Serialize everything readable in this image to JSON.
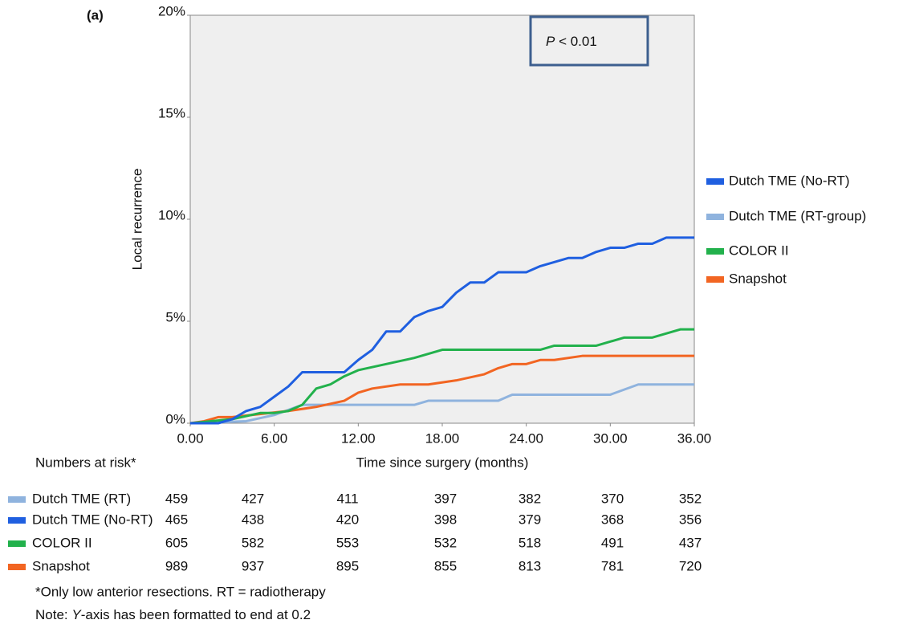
{
  "chart_data": {
    "type": "line",
    "panel_label": "(a)",
    "ylabel": "Local recurrence",
    "xlabel": "Time since surgery (months)",
    "annotation": {
      "symbol": "P",
      "text": "< 0.01"
    },
    "xlim": [
      0,
      36
    ],
    "xticks": [
      {
        "value": 0,
        "label": "0.00"
      },
      {
        "value": 6,
        "label": "6.00"
      },
      {
        "value": 12,
        "label": "12.00"
      },
      {
        "value": 18,
        "label": "18.00"
      },
      {
        "value": 24,
        "label": "24.00"
      },
      {
        "value": 30,
        "label": "30.00"
      },
      {
        "value": 36,
        "label": "36.00"
      }
    ],
    "ylim": [
      0,
      20
    ],
    "yticks": [
      {
        "value": 0,
        "label": "0%"
      },
      {
        "value": 5,
        "label": "5%"
      },
      {
        "value": 10,
        "label": "10%"
      },
      {
        "value": 15,
        "label": "15%"
      },
      {
        "value": 20,
        "label": "20%"
      }
    ],
    "series": [
      {
        "name": "Dutch TME (No-RT)",
        "color": "#1f5fe0",
        "x": [
          0,
          2,
          3,
          4,
          5,
          6,
          7,
          8,
          11,
          12,
          13,
          14,
          15,
          16,
          17,
          18,
          19,
          20,
          21,
          22,
          24,
          25,
          27,
          28,
          29,
          30,
          31,
          32,
          33,
          34,
          36
        ],
        "values": [
          0,
          0,
          0.2,
          0.6,
          0.8,
          1.3,
          1.8,
          2.5,
          2.5,
          3.1,
          3.6,
          4.5,
          4.5,
          5.2,
          5.5,
          5.7,
          6.4,
          6.9,
          6.9,
          7.4,
          7.4,
          7.7,
          8.1,
          8.1,
          8.4,
          8.6,
          8.6,
          8.8,
          8.8,
          9.1,
          9.1
        ]
      },
      {
        "name": "Dutch TME (RT-group)",
        "color": "#8fb3de",
        "x": [
          0,
          4,
          6,
          8,
          16,
          17,
          22,
          23,
          30,
          32,
          36
        ],
        "values": [
          0,
          0.1,
          0.4,
          0.9,
          0.9,
          1.1,
          1.1,
          1.4,
          1.4,
          1.9,
          1.9
        ]
      },
      {
        "name": "COLOR II",
        "color": "#22b14c",
        "x": [
          0,
          3,
          5,
          6,
          7,
          8,
          9,
          10,
          11,
          12,
          14,
          16,
          18,
          25,
          26,
          29,
          31,
          33,
          35,
          36
        ],
        "values": [
          0,
          0.2,
          0.5,
          0.5,
          0.6,
          0.9,
          1.7,
          1.9,
          2.3,
          2.6,
          2.9,
          3.2,
          3.6,
          3.6,
          3.8,
          3.8,
          4.2,
          4.2,
          4.6,
          4.6
        ]
      },
      {
        "name": "Snapshot",
        "color": "#f26522",
        "x": [
          0,
          1,
          2,
          3,
          7,
          9,
          11,
          12,
          13,
          15,
          17,
          19,
          21,
          22,
          23,
          24,
          25,
          26,
          28,
          36
        ],
        "values": [
          0,
          0.1,
          0.3,
          0.3,
          0.6,
          0.8,
          1.1,
          1.5,
          1.7,
          1.9,
          1.9,
          2.1,
          2.4,
          2.7,
          2.9,
          2.9,
          3.1,
          3.1,
          3.3,
          3.3
        ]
      }
    ],
    "risk_table": {
      "title": "Numbers at risk*",
      "rows": [
        {
          "name": "Dutch TME (RT)",
          "color": "#8fb3de",
          "values": [
            459,
            427,
            411,
            397,
            382,
            370,
            352
          ]
        },
        {
          "name": "Dutch TME (No-RT)",
          "color": "#1f5fe0",
          "values": [
            465,
            438,
            420,
            398,
            379,
            368,
            356
          ]
        },
        {
          "name": "COLOR II",
          "color": "#22b14c",
          "values": [
            605,
            582,
            553,
            532,
            518,
            491,
            437
          ]
        },
        {
          "name": "Snapshot",
          "color": "#f26522",
          "values": [
            989,
            937,
            895,
            855,
            813,
            781,
            720
          ]
        }
      ]
    },
    "footnote": "*Only low anterior resections. RT = radiotherapy",
    "note": {
      "prefix": "Note: ",
      "symbol": "Y",
      "text": "-axis has been formatted to end at 0.2"
    }
  }
}
